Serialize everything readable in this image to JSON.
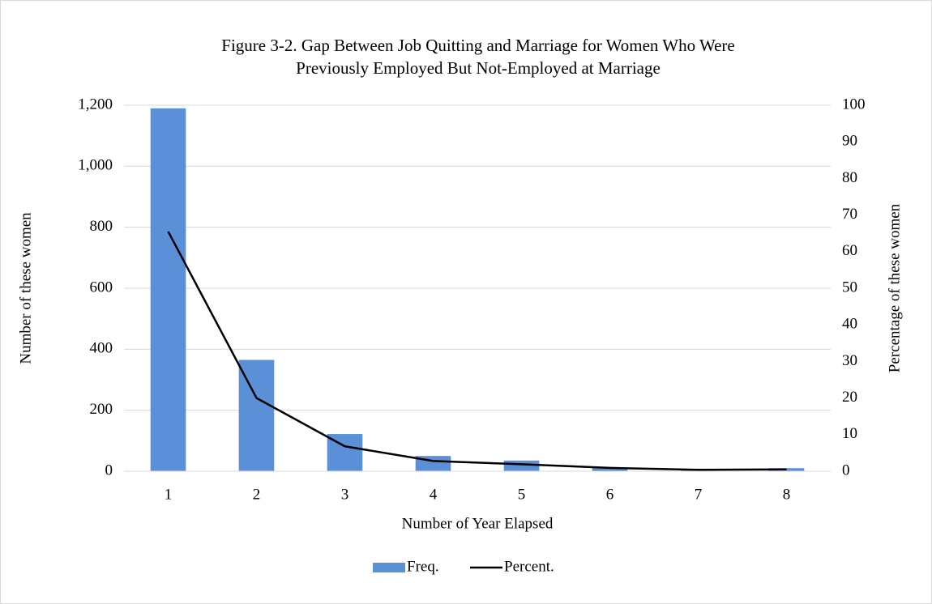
{
  "chart_data": {
    "type": "bar",
    "title": [
      "Figure 3-2. Gap Between Job Quitting and Marriage for Women Who Were",
      "Previously Employed But Not-Employed at Marriage"
    ],
    "xlabel": "Number of Year Elapsed",
    "ylabel": "Number of these women",
    "y2label": "Percentage of these women",
    "categories": [
      "1",
      "2",
      "3",
      "4",
      "5",
      "6",
      "7",
      "8"
    ],
    "series": [
      {
        "name": "Freq.",
        "type": "bar",
        "color": "#5b8fd8",
        "values": [
          1190,
          365,
          122,
          50,
          35,
          12,
          3,
          10
        ]
      },
      {
        "name": "Percent.",
        "type": "line",
        "axis": "y2",
        "color": "#000000",
        "values": [
          65.5,
          20,
          6.8,
          2.8,
          1.9,
          0.9,
          0.4,
          0.5
        ]
      }
    ],
    "ylim": [
      0,
      1200
    ],
    "yticks": [
      0,
      200,
      400,
      600,
      800,
      {
        "value": 1000,
        "label": "1,000"
      },
      {
        "value": 1200,
        "label": "1,200"
      }
    ],
    "y2lim": [
      0,
      100
    ],
    "y2ticks": [
      0,
      10,
      20,
      30,
      40,
      50,
      60,
      70,
      80,
      90,
      100
    ],
    "grid": true,
    "legend": "bottom"
  }
}
